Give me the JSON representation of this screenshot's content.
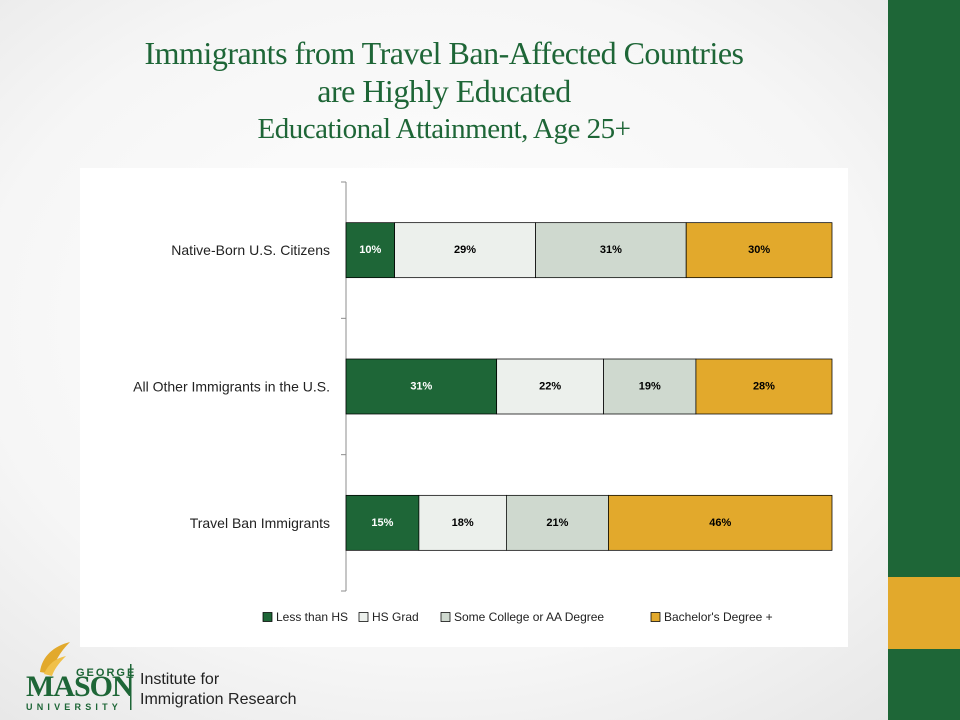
{
  "title_line1": "Immigrants from Travel Ban-Affected Countries",
  "title_line2": "are Highly Educated",
  "subtitle": "Educational Attainment, Age 25+",
  "colors": {
    "green": "#1e6637",
    "gold": "#e2a92c",
    "hs_grad": "#ecf0ec",
    "some_college": "#cfd9cf"
  },
  "logo": {
    "george": "GEORGE",
    "mason": "MASON",
    "university": "UNIVERSITY",
    "institute_line1": "Institute for",
    "institute_line2": "Immigration Research"
  },
  "chart_data": {
    "type": "bar",
    "orientation": "horizontal",
    "stacked": true,
    "normalized": true,
    "categories": [
      "Native-Born U.S. Citizens",
      "All Other Immigrants in the U.S.",
      "Travel Ban Immigrants"
    ],
    "series": [
      {
        "name": "Less than HS",
        "color": "#1e6637",
        "label_color": "#ffffff",
        "values": [
          10,
          31,
          15
        ]
      },
      {
        "name": "HS Grad",
        "color": "#ecf0ec",
        "label_color": "#000000",
        "values": [
          29,
          22,
          18
        ]
      },
      {
        "name": "Some College or AA Degree",
        "color": "#cfd9cf",
        "label_color": "#000000",
        "values": [
          31,
          19,
          21
        ]
      },
      {
        "name": "Bachelor's Degree +",
        "color": "#e2a92c",
        "label_color": "#000000",
        "values": [
          30,
          28,
          46
        ]
      }
    ],
    "value_suffix": "%",
    "xlim": [
      0,
      100
    ],
    "grid": false,
    "legend_position": "bottom"
  }
}
